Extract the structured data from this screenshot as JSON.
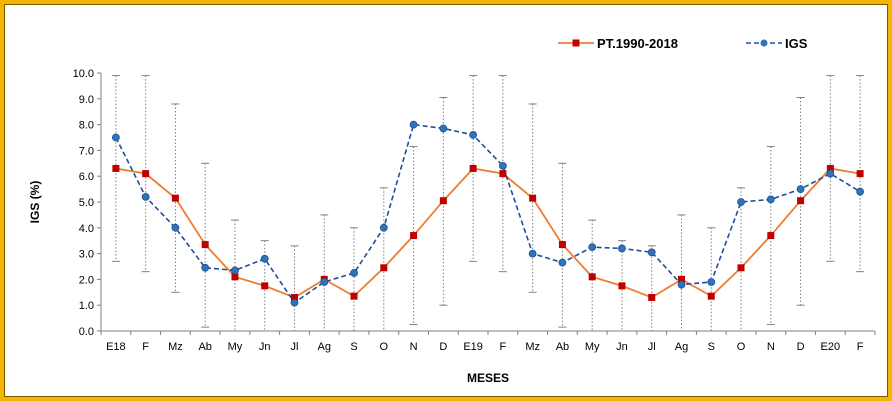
{
  "chart_data": {
    "type": "line",
    "title": "",
    "xlabel": "MESES",
    "ylabel": "IGS  (%)",
    "ylim": [
      0,
      10
    ],
    "yticks": [
      "0.0",
      "1.0",
      "2.0",
      "3.0",
      "4.0",
      "5.0",
      "6.0",
      "7.0",
      "8.0",
      "9.0",
      "10.0"
    ],
    "legend_position": "top-right",
    "grid": false,
    "categories": [
      "E18",
      "F",
      "Mz",
      "Ab",
      "My",
      "Jn",
      "Jl",
      "Ag",
      "S",
      "O",
      "N",
      "D",
      "E19",
      "F",
      "Mz",
      "Ab",
      "My",
      "Jn",
      "Jl",
      "Ag",
      "S",
      "O",
      "N",
      "D",
      "E20",
      "F"
    ],
    "series": [
      {
        "name": "PT.1990-2018",
        "color": "#ed7d31",
        "marker_color": "#c00000",
        "marker": "square",
        "dash": "solid",
        "values": [
          6.3,
          6.1,
          5.15,
          3.35,
          2.1,
          1.75,
          1.3,
          2.0,
          1.35,
          2.45,
          3.7,
          5.05,
          6.3,
          6.1,
          5.15,
          3.35,
          2.1,
          1.75,
          1.3,
          2.0,
          1.35,
          2.45,
          3.7,
          5.05,
          6.3,
          6.1
        ]
      },
      {
        "name": "IGS",
        "color": "#1f4e9c",
        "marker_color": "#2e75b6",
        "marker": "circle",
        "dash": "dashed",
        "values": [
          7.5,
          5.2,
          4.0,
          2.45,
          2.35,
          2.8,
          1.1,
          1.9,
          2.25,
          4.0,
          8.0,
          7.85,
          7.6,
          6.4,
          3.0,
          2.65,
          3.25,
          3.2,
          3.05,
          1.8,
          1.9,
          5.0,
          5.1,
          5.5,
          6.1,
          5.4
        ]
      }
    ],
    "error_bars": {
      "series": "PT.1990-2018",
      "color": "#808080",
      "style": "dotted",
      "high": [
        9.9,
        9.9,
        8.8,
        6.5,
        4.3,
        3.5,
        3.3,
        4.5,
        4.0,
        5.55,
        7.15,
        9.05,
        9.9,
        9.9,
        8.8,
        6.5,
        4.3,
        3.5,
        3.3,
        4.5,
        4.0,
        5.55,
        7.15,
        9.05,
        9.9,
        9.9
      ],
      "low": [
        2.7,
        2.3,
        1.5,
        0.15,
        0.0,
        0.0,
        0.0,
        0.0,
        0.0,
        0.0,
        0.25,
        1.0,
        2.7,
        2.3,
        1.5,
        0.15,
        0.0,
        0.0,
        0.0,
        0.0,
        0.0,
        0.0,
        0.25,
        1.0,
        2.7,
        2.3
      ]
    }
  }
}
